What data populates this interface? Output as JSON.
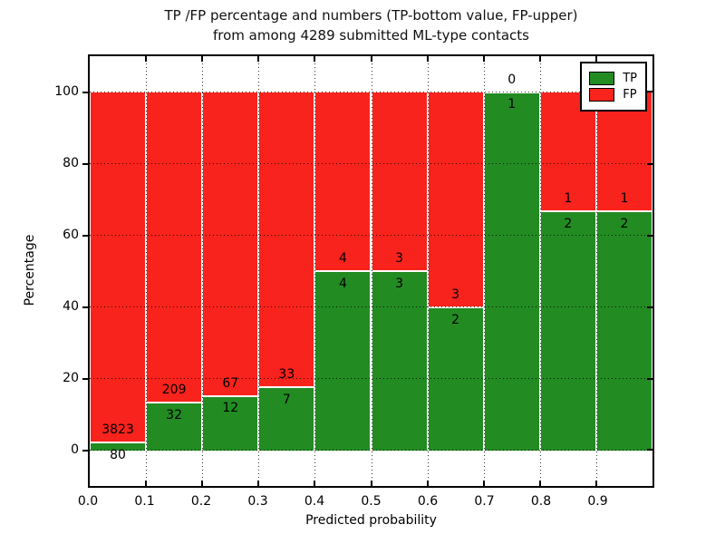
{
  "title_line1": "TP /FP percentage and numbers (TP-bottom value, FP-upper)",
  "title_line2": "from among 4289 submitted ML-type contacts",
  "total_contacts": "4289",
  "legend": {
    "tp_label": "TP",
    "fp_label": "FP"
  },
  "colors": {
    "tp": "#228b22",
    "fp": "#f8231c",
    "grid": "#000000",
    "text": "#000000"
  },
  "chart_data": {
    "type": "bar",
    "stacked": true,
    "title": "TP /FP percentage and numbers (TP-bottom value, FP-upper) from among 4289 submitted ML-type contacts",
    "xlabel": "Predicted probability",
    "ylabel": "Percentage",
    "xlim": [
      0.0,
      1.0
    ],
    "ylim": [
      -10,
      110
    ],
    "bin_edges": [
      0.0,
      0.1,
      0.2,
      0.3,
      0.4,
      0.5,
      0.6,
      0.7,
      0.8,
      0.9,
      1.0
    ],
    "xticks": [
      0.0,
      0.1,
      0.2,
      0.3,
      0.4,
      0.5,
      0.6,
      0.7,
      0.8,
      0.9
    ],
    "xtick_labels": [
      "0.0",
      "0.1",
      "0.2",
      "0.3",
      "0.4",
      "0.5",
      "0.6",
      "0.7",
      "0.8",
      "0.9"
    ],
    "yticks": [
      0,
      20,
      40,
      60,
      80,
      100
    ],
    "ytick_labels": [
      "0",
      "20",
      "40",
      "60",
      "80",
      "100"
    ],
    "grid": "dotted, drawn above bars",
    "legend_position": "upper right",
    "series": [
      {
        "name": "TP",
        "color": "#228b22",
        "counts": [
          80,
          32,
          12,
          7,
          4,
          3,
          2,
          1,
          2,
          2
        ],
        "percentages": [
          2.05,
          13.28,
          15.19,
          17.5,
          50,
          50,
          40,
          100,
          66.67,
          66.67
        ]
      },
      {
        "name": "FP",
        "color": "#f8231c",
        "counts": [
          3823,
          209,
          67,
          33,
          4,
          3,
          3,
          0,
          1,
          1
        ],
        "percentages": [
          97.95,
          86.72,
          84.81,
          82.5,
          50,
          50,
          60,
          0,
          33.33,
          33.33
        ]
      }
    ]
  }
}
